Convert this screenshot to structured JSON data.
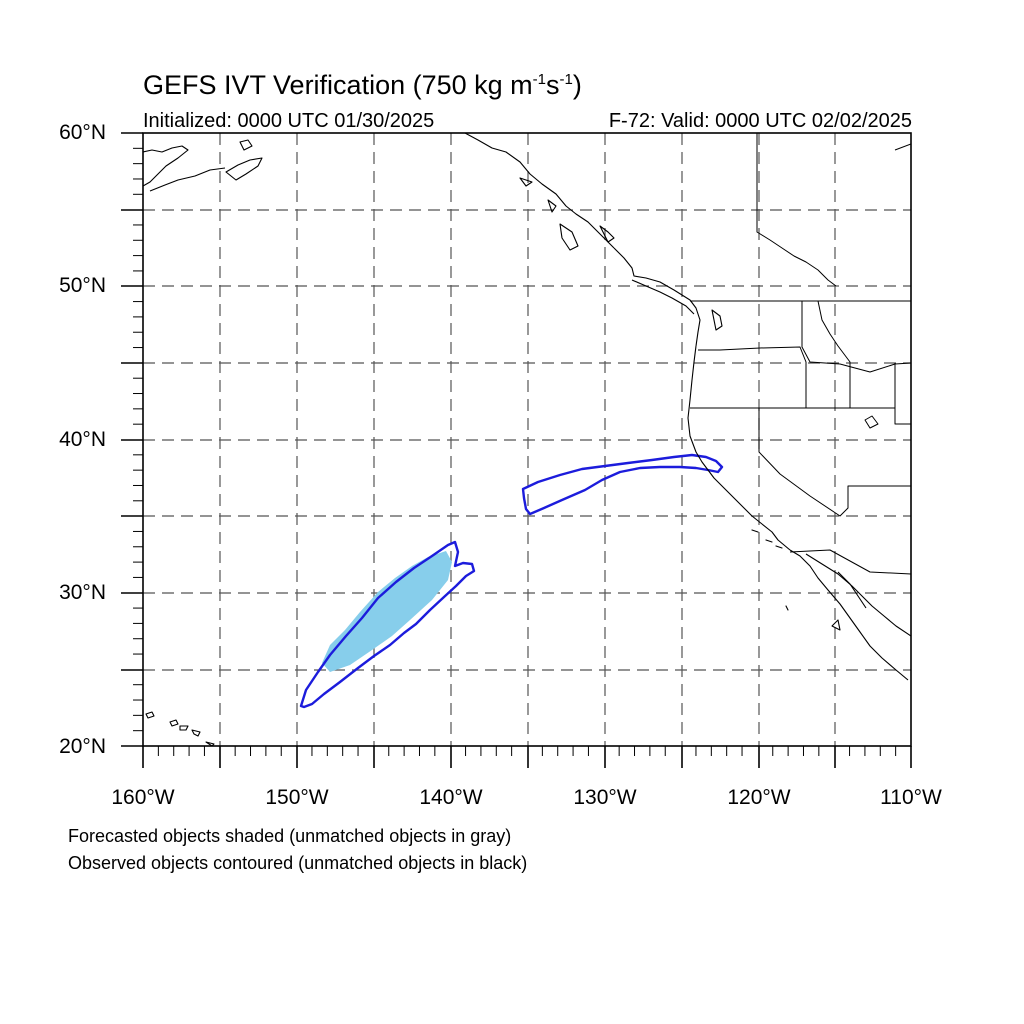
{
  "title": {
    "main": "GEFS IVT Verification (750 kg m",
    "exp1": "-1",
    "mid": "s",
    "exp2": "-1",
    "end": ")"
  },
  "init_text": "Initialized: 0000 UTC 01/30/2025",
  "valid_text": "F-72: Valid: 0000 UTC 02/02/2025",
  "lat_labels": [
    "60°N",
    "50°N",
    "40°N",
    "30°N",
    "20°N"
  ],
  "lon_labels": [
    "160°W",
    "150°W",
    "140°W",
    "130°W",
    "120°W",
    "110°W"
  ],
  "notes": [
    "Forecasted objects shaded (unmatched objects in gray)",
    "Observed objects contoured (unmatched objects in black)"
  ],
  "colors": {
    "forecast_fill": "#87CEEB",
    "observed_contour": "#1c1cdc",
    "coastline": "#000000",
    "grid": "#555555"
  },
  "map_extent": {
    "lon": [
      -160,
      -110
    ],
    "lat": [
      20,
      60
    ]
  }
}
